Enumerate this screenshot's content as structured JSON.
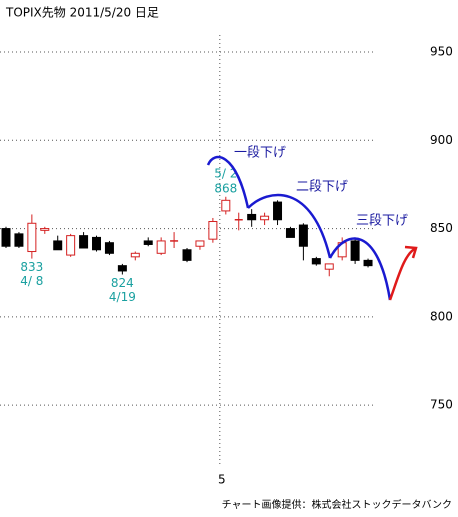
{
  "chart_data": {
    "type": "candlestick",
    "title": "TOPIX先物  2011/5/20  日足",
    "categories": [
      null,
      null,
      null,
      null,
      null,
      null,
      null,
      null,
      null,
      null,
      null,
      null,
      null,
      null,
      null,
      null,
      null,
      "5",
      null,
      null,
      null,
      null,
      null,
      null,
      null,
      null,
      null,
      null,
      null
    ],
    "open": [
      850,
      847,
      837,
      849,
      843,
      835,
      846,
      845,
      842,
      829,
      834,
      843,
      836,
      843,
      838,
      840,
      844,
      860,
      855,
      858,
      855,
      865,
      850,
      852,
      833,
      827,
      834,
      843,
      832
    ],
    "high": [
      851,
      848,
      858,
      851,
      846,
      847,
      848,
      846,
      843,
      830,
      837,
      845,
      845,
      848,
      839,
      843,
      856,
      868,
      859,
      861,
      859,
      866,
      851,
      853,
      834,
      830,
      845,
      845,
      833
    ],
    "low": [
      839,
      839,
      833,
      847,
      838,
      834,
      839,
      837,
      835,
      824,
      832,
      840,
      835,
      839,
      831,
      838,
      842,
      858,
      849,
      851,
      852,
      852,
      845,
      832,
      829,
      823,
      832,
      830,
      828
    ],
    "close": [
      840,
      840,
      853,
      850,
      838,
      846,
      839,
      838,
      836,
      826,
      836,
      841,
      843,
      843,
      832,
      843,
      854,
      866,
      855,
      855,
      857,
      855,
      845,
      840,
      830,
      830,
      842,
      832,
      829
    ],
    "up_color": "#d42020",
    "down_color": "#000000",
    "ylim": [
      715,
      960
    ],
    "yticks": [
      750,
      800,
      850,
      900,
      950
    ],
    "grid": true,
    "annotations": [
      {
        "value": 833,
        "label": "4/ 8"
      },
      {
        "value": 824,
        "label": "4/19"
      },
      {
        "value": 868,
        "label": "5/ 2"
      }
    ],
    "wave_labels": [
      "一段下げ",
      "二段下げ",
      "三段下げ"
    ],
    "source": "チャート画像提供：株式会社ストックデータバンク"
  }
}
